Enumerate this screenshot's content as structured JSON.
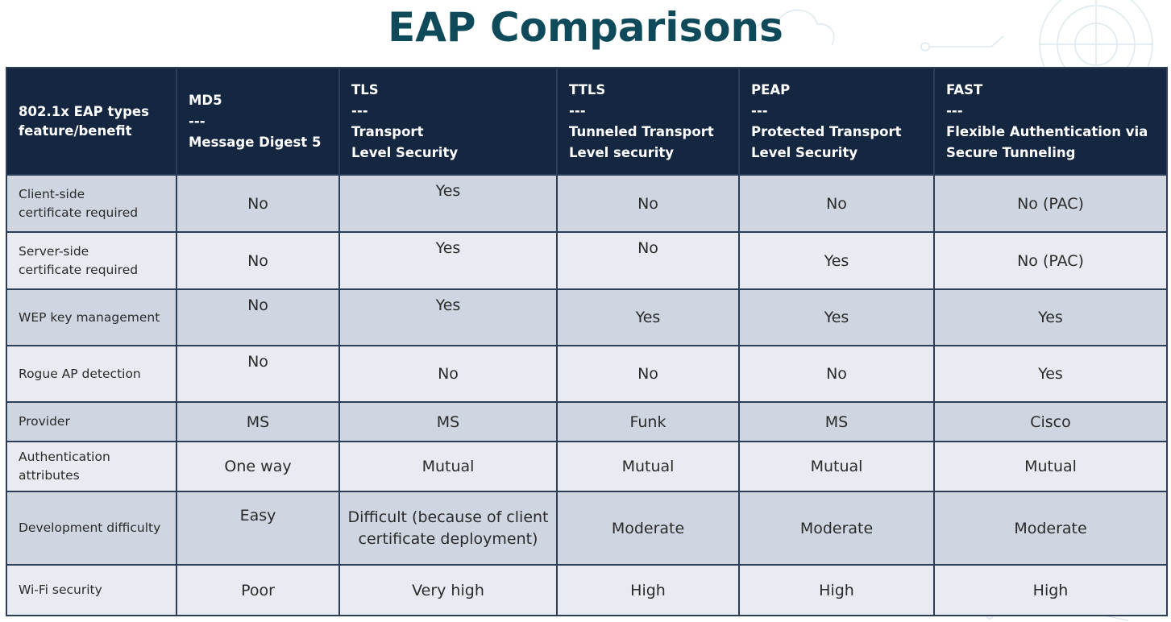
{
  "title": "EAP Comparisons",
  "colors": {
    "title": "#0f4a5a",
    "header_bg": "#142640",
    "row_shaded": "#cfd6e2",
    "row_light": "#e8ebf1",
    "grid": "#2c3e57"
  },
  "header": [
    "802.1x EAP types\nfeature/benefit",
    "MD5\n---\nMessage Digest 5",
    "TLS\n---\nTransport\nLevel Security",
    "TTLS\n---\nTunneled Transport\nLevel security",
    "PEAP\n---\nProtected Transport\nLevel Security",
    "FAST\n---\nFlexible Authentication via\nSecure Tunneling"
  ],
  "rows": [
    {
      "feature": "Client-side\ncertificate required",
      "values": [
        "No",
        "Yes",
        "No",
        "No",
        "No (PAC)"
      ]
    },
    {
      "feature": "Server-side\ncertificate required",
      "values": [
        "No",
        "Yes",
        "No",
        "Yes",
        "No (PAC)"
      ]
    },
    {
      "feature": "WEP key management",
      "values": [
        "No",
        "Yes",
        "Yes",
        "Yes",
        "Yes"
      ]
    },
    {
      "feature": "Rogue AP detection",
      "values": [
        "No",
        "No",
        "No",
        "No",
        "Yes"
      ]
    },
    {
      "feature": "Provider",
      "values": [
        "MS",
        "MS",
        "Funk",
        "MS",
        "Cisco"
      ]
    },
    {
      "feature": "Authentication\nattributes",
      "values": [
        "One way",
        "Mutual",
        "Mutual",
        "Mutual",
        "Mutual"
      ]
    },
    {
      "feature": "Development difficulty",
      "values": [
        "Easy",
        "Difficult (because of client\ncertificate deployment)",
        "Moderate",
        "Moderate",
        "Moderate"
      ]
    },
    {
      "feature": "Wi-Fi security",
      "values": [
        "Poor",
        "Very high",
        "High",
        "High",
        "High"
      ]
    }
  ]
}
